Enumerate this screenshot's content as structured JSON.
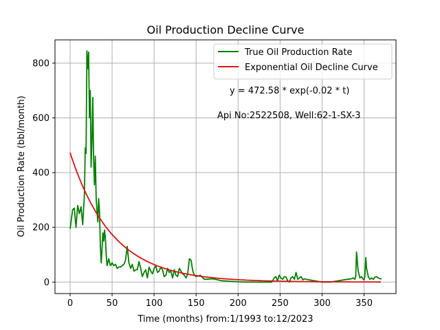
{
  "chart_data": {
    "type": "line",
    "title": "Oil Production Decline Curve",
    "xlabel": "Time (months) from:1/1993 to:12/2023",
    "ylabel": "Oil Production Rate (bbl/month)",
    "xlim": [
      -18,
      388
    ],
    "ylim": [
      -42,
      885
    ],
    "xticks": [
      0,
      50,
      100,
      150,
      200,
      250,
      300,
      350
    ],
    "yticks": [
      0,
      200,
      400,
      600,
      800
    ],
    "grid": true,
    "legend_position": "top-right",
    "annotations": [
      {
        "text": "y = 472.58 * exp(-0.02 * t)",
        "x": 265,
        "y": 700
      },
      {
        "text": "Api No:2522508, Well:62-1-SX-3",
        "x": 265,
        "y": 607
      }
    ],
    "series": [
      {
        "name": "True Oil Production Rate",
        "color": "#008000",
        "x": [
          0,
          3,
          5,
          7,
          9,
          11,
          13,
          15,
          17,
          18,
          19,
          20,
          21,
          22,
          23,
          24,
          25,
          26,
          27,
          28,
          29,
          30,
          31,
          32,
          33,
          34,
          35,
          36,
          37,
          38,
          39,
          40,
          41,
          42,
          43,
          44,
          46,
          48,
          50,
          52,
          54,
          56,
          58,
          60,
          62,
          64,
          66,
          68,
          70,
          72,
          74,
          76,
          78,
          80,
          82,
          84,
          86,
          88,
          90,
          92,
          94,
          96,
          98,
          100,
          102,
          104,
          106,
          108,
          110,
          112,
          114,
          116,
          118,
          120,
          122,
          124,
          126,
          128,
          130,
          132,
          134,
          136,
          138,
          140,
          142,
          144,
          146,
          148,
          150,
          155,
          160,
          170,
          180,
          190,
          200,
          210,
          220,
          230,
          240,
          243,
          245,
          247,
          249,
          251,
          253,
          255,
          257,
          259,
          261,
          263,
          265,
          267,
          269,
          271,
          273,
          275,
          277,
          279,
          281,
          290,
          300,
          310,
          320,
          330,
          335,
          337,
          339,
          340,
          341,
          343,
          345,
          347,
          349,
          350,
          351,
          352,
          353,
          355,
          357,
          359,
          361,
          363,
          365,
          367,
          369,
          371
        ],
        "y": [
          195,
          265,
          270,
          200,
          280,
          250,
          275,
          210,
          320,
          490,
          470,
          845,
          780,
          840,
          600,
          700,
          420,
          520,
          675,
          450,
          355,
          460,
          305,
          260,
          220,
          305,
          260,
          130,
          70,
          120,
          180,
          150,
          190,
          160,
          100,
          60,
          85,
          60,
          70,
          60,
          65,
          50,
          55,
          55,
          60,
          65,
          80,
          130,
          70,
          50,
          65,
          40,
          45,
          45,
          75,
          50,
          20,
          35,
          45,
          15,
          55,
          40,
          30,
          50,
          60,
          35,
          40,
          55,
          45,
          20,
          25,
          50,
          35,
          40,
          15,
          45,
          25,
          20,
          50,
          40,
          30,
          25,
          15,
          30,
          85,
          80,
          40,
          25,
          20,
          25,
          10,
          12,
          5,
          3,
          1,
          0,
          0,
          0,
          0,
          15,
          20,
          5,
          25,
          15,
          10,
          20,
          18,
          5,
          0,
          15,
          20,
          10,
          35,
          10,
          15,
          20,
          8,
          12,
          10,
          5,
          0,
          0,
          5,
          10,
          12,
          15,
          10,
          20,
          110,
          40,
          15,
          20,
          10,
          8,
          25,
          90,
          50,
          20,
          10,
          15,
          10,
          18,
          20,
          15,
          12,
          12
        ]
      },
      {
        "name": "Exponential Oil Decline Curve",
        "color": "#dd1111",
        "model": {
          "a": 472.58,
          "b": 0.02,
          "t_max": 370
        }
      }
    ]
  }
}
